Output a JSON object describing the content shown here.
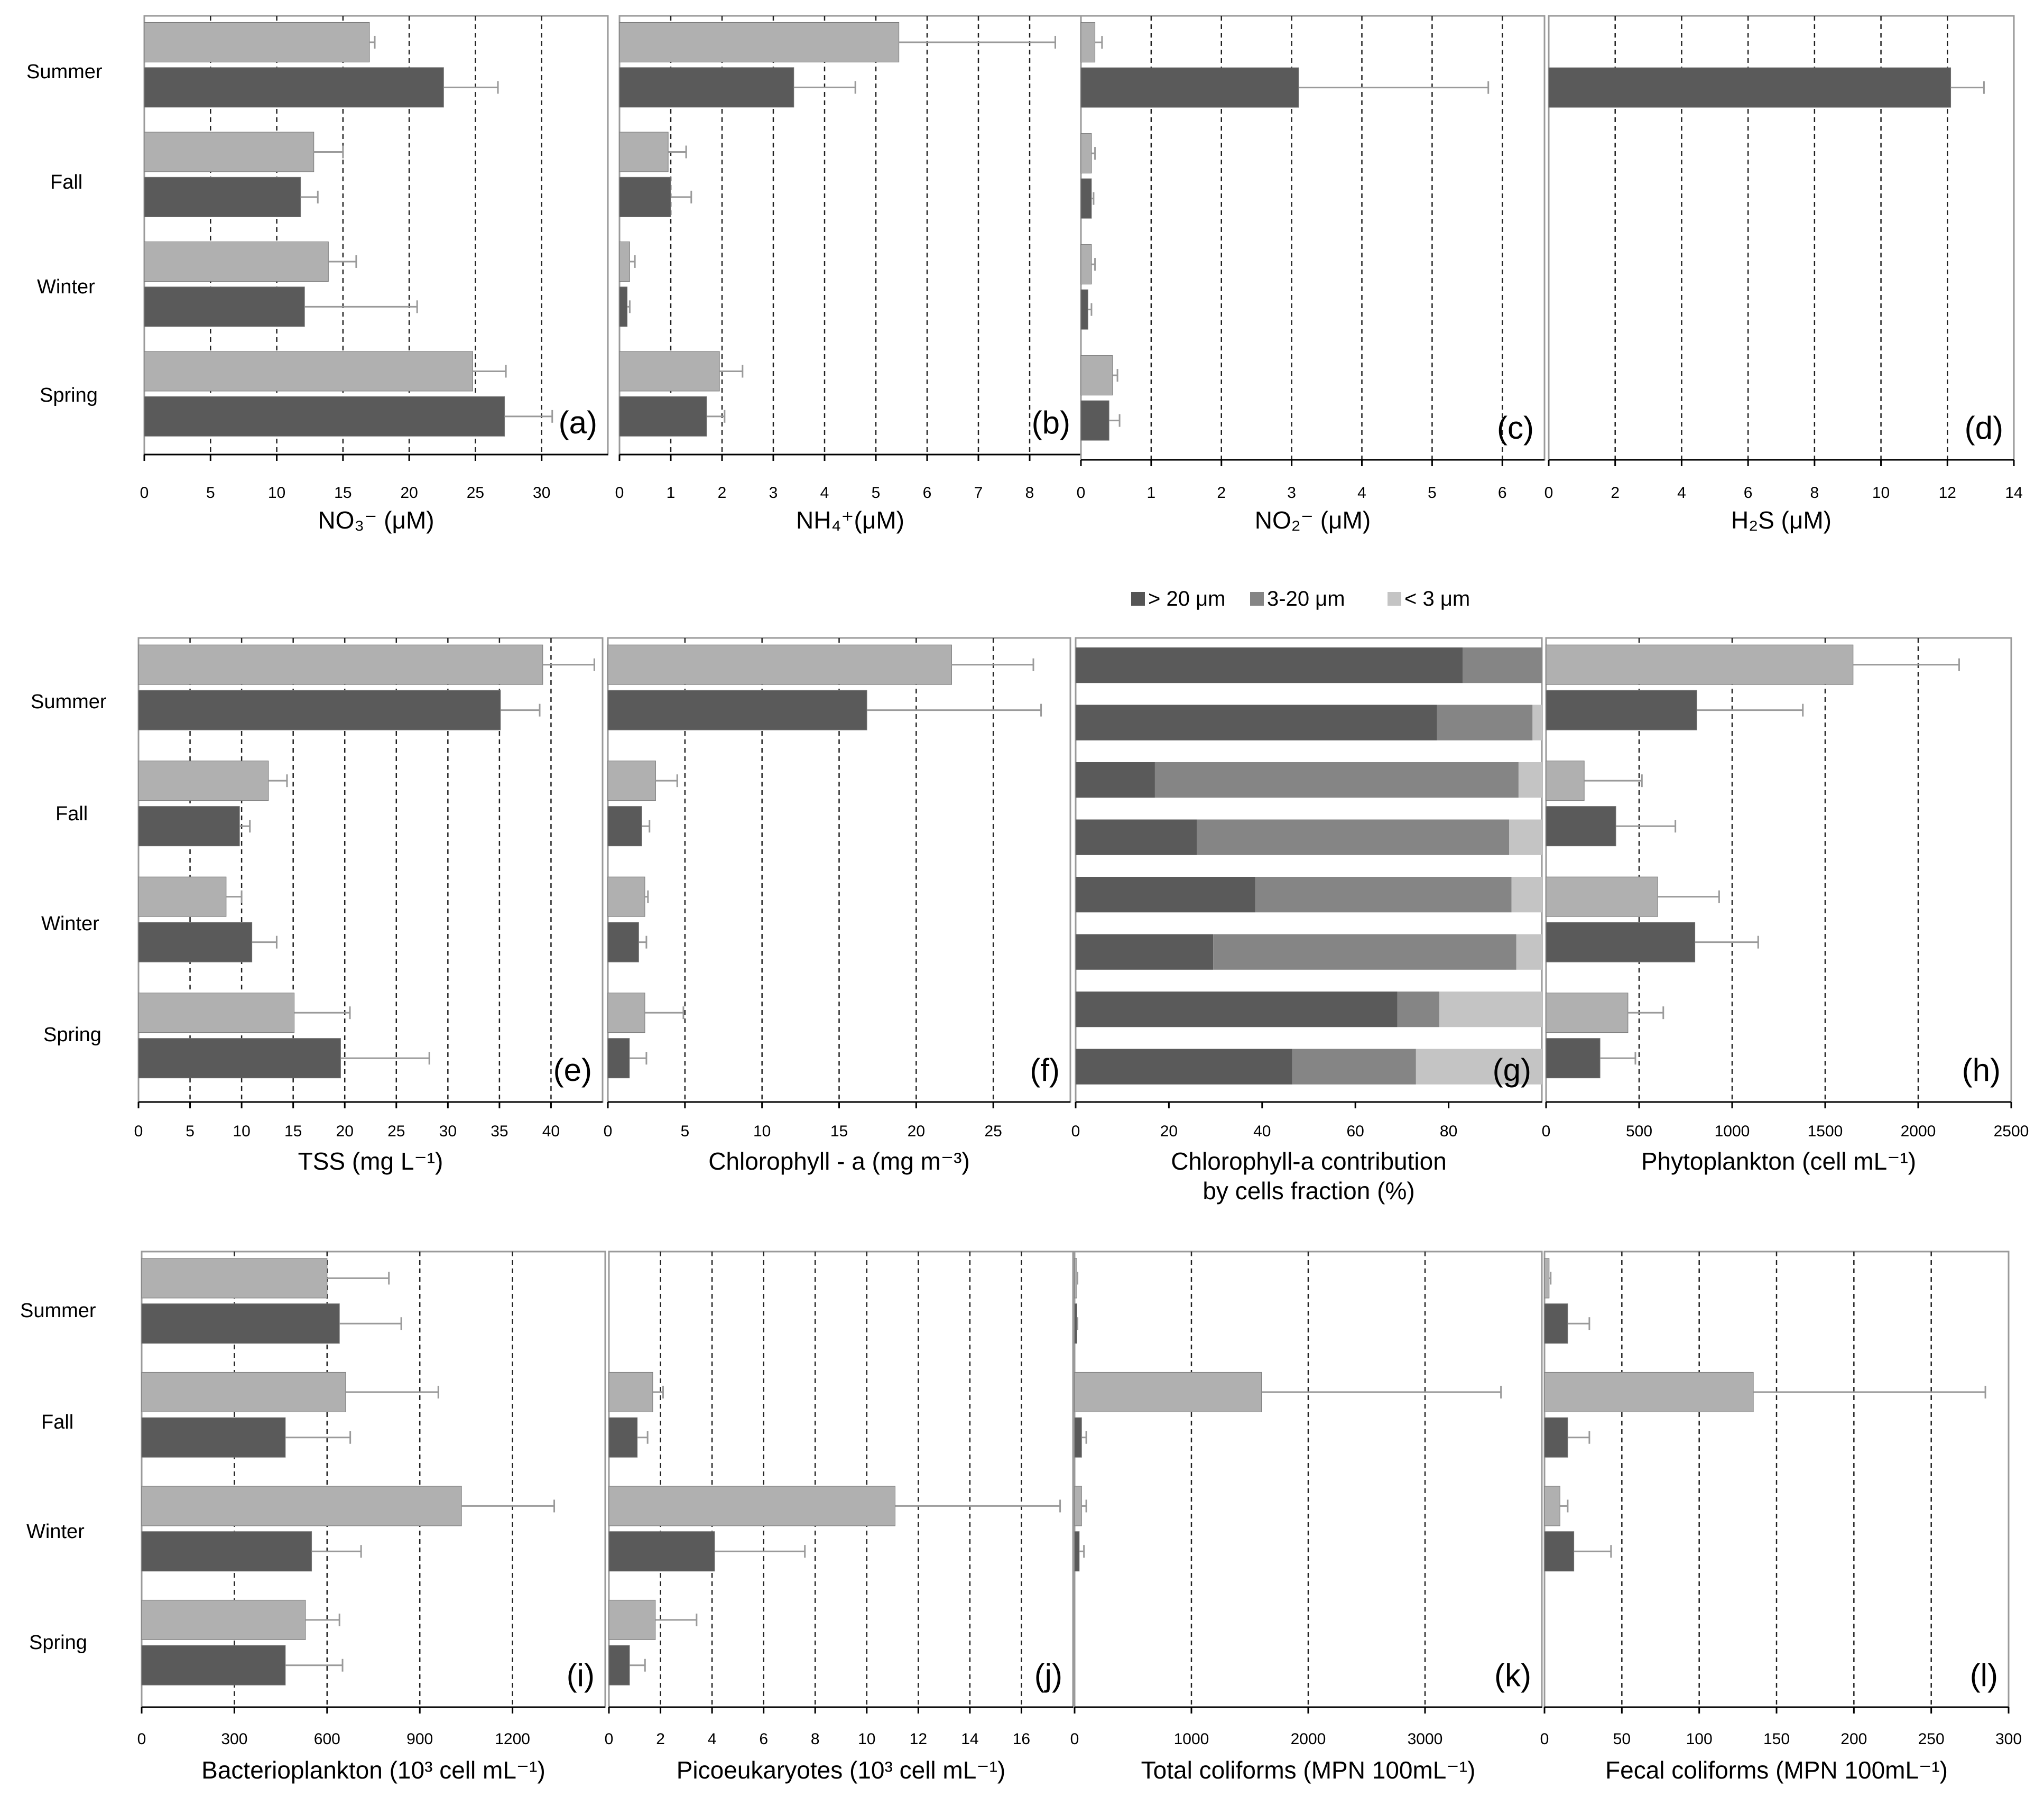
{
  "colors": {
    "light": "#b0b0b0",
    "dark": "#5a5a5a",
    "mid": "#858585",
    "lightest": "#c4c4c4",
    "error": "#9a9a9a"
  },
  "legend": [
    "> 20 μm",
    "3-20 μm",
    "< 3 μm"
  ],
  "chart_data": [
    {
      "id": "a",
      "type": "bar",
      "panel_label": "(a)",
      "xlabel": "NO₃⁻ (μM)",
      "xlim": [
        0,
        35
      ],
      "ticks": [
        "0",
        "5",
        "10",
        "15",
        "20",
        "25",
        "30"
      ],
      "tick_values": [
        0,
        5,
        10,
        15,
        20,
        25,
        30
      ],
      "grid_lines": [
        5,
        10,
        15,
        20,
        25,
        30
      ],
      "categories": [
        "Summer",
        "Fall",
        "Winter",
        "Spring"
      ],
      "light": [
        17,
        12.8,
        13.9,
        24.8
      ],
      "light_err": [
        0.4,
        2.2,
        2.1,
        2.5
      ],
      "dark": [
        22.6,
        11.8,
        12.1,
        27.2
      ],
      "dark_err": [
        4.1,
        1.3,
        8.5,
        3.6
      ]
    },
    {
      "id": "b",
      "type": "bar",
      "panel_label": "(b)",
      "xlabel": "NH₄⁺(μM)",
      "xlim": [
        0,
        9
      ],
      "ticks": [
        "0",
        "1",
        "2",
        "3",
        "4",
        "5",
        "6",
        "7",
        "8"
      ],
      "tick_values": [
        0,
        1,
        2,
        3,
        4,
        5,
        6,
        7,
        8
      ],
      "grid_lines": [
        1,
        2,
        3,
        4,
        5,
        6,
        7,
        8
      ],
      "categories": [
        "Summer",
        "Fall",
        "Winter",
        "Spring"
      ],
      "light": [
        5.45,
        0.95,
        0.2,
        1.95
      ],
      "light_err": [
        3.05,
        0.35,
        0.1,
        0.45
      ],
      "dark": [
        3.4,
        1.0,
        0.15,
        1.7
      ],
      "dark_err": [
        1.2,
        0.4,
        0.05,
        0.35
      ]
    },
    {
      "id": "c",
      "type": "bar",
      "panel_label": "(c)",
      "xlabel": "NO₂⁻ (μM)",
      "xlim": [
        0,
        6.6
      ],
      "ticks": [
        "0",
        "1",
        "2",
        "3",
        "4",
        "5",
        "6"
      ],
      "tick_values": [
        0,
        1,
        2,
        3,
        4,
        5,
        6
      ],
      "grid_lines": [
        1,
        2,
        3,
        4,
        5,
        6
      ],
      "categories": [
        "Summer",
        "Fall",
        "Winter",
        "Spring"
      ],
      "light": [
        0.2,
        0.15,
        0.15,
        0.45
      ],
      "light_err": [
        0.1,
        0.05,
        0.05,
        0.07
      ],
      "dark": [
        3.1,
        0.15,
        0.1,
        0.4
      ],
      "dark_err": [
        2.7,
        0.03,
        0.05,
        0.15
      ]
    },
    {
      "id": "d",
      "type": "bar",
      "panel_label": "(d)",
      "xlabel": "H₂S (μM)",
      "xlim": [
        0,
        14
      ],
      "ticks": [
        "0",
        "2",
        "4",
        "6",
        "8",
        "10",
        "12",
        "14"
      ],
      "tick_values": [
        0,
        2,
        4,
        6,
        8,
        10,
        12,
        14
      ],
      "grid_lines": [
        2,
        4,
        6,
        8,
        10,
        12
      ],
      "categories": [
        "Summer",
        "Fall",
        "Winter",
        "Spring"
      ],
      "light": [
        0,
        0,
        0,
        0
      ],
      "light_err": [
        0,
        0,
        0,
        0
      ],
      "dark": [
        12.1,
        0,
        0,
        0
      ],
      "dark_err": [
        1.0,
        0,
        0,
        0
      ]
    },
    {
      "id": "e",
      "type": "bar",
      "panel_label": "(e)",
      "xlabel": "TSS (mg L⁻¹)",
      "xlim": [
        0,
        45
      ],
      "ticks": [
        "0",
        "5",
        "10",
        "15",
        "20",
        "25",
        "30",
        "35",
        "40"
      ],
      "tick_values": [
        0,
        5,
        10,
        15,
        20,
        25,
        30,
        35,
        40
      ],
      "grid_lines": [
        5,
        10,
        15,
        20,
        25,
        30,
        35,
        40
      ],
      "categories": [
        "Summer",
        "Fall",
        "Winter",
        "Spring"
      ],
      "light": [
        39.2,
        12.6,
        8.5,
        15.1
      ],
      "light_err": [
        5,
        1.8,
        1.5,
        5.4
      ],
      "dark": [
        35.1,
        9.8,
        11,
        19.6
      ],
      "dark_err": [
        3.8,
        1,
        2.4,
        8.6
      ]
    },
    {
      "id": "f",
      "type": "bar",
      "panel_label": "(f)",
      "xlabel": "Chlorophyll - a (mg m⁻³)",
      "xlim": [
        0,
        30
      ],
      "ticks": [
        "0",
        "5",
        "10",
        "15",
        "20",
        "25"
      ],
      "tick_values": [
        0,
        5,
        10,
        15,
        20,
        25
      ],
      "grid_lines": [
        5,
        10,
        15,
        20,
        25
      ],
      "categories": [
        "Summer",
        "Fall",
        "Winter",
        "Spring"
      ],
      "light": [
        22.3,
        3.1,
        2.4,
        2.4
      ],
      "light_err": [
        5.3,
        1.4,
        0.2,
        2.5
      ],
      "dark": [
        16.8,
        2.2,
        2,
        1.4
      ],
      "dark_err": [
        11.3,
        0.5,
        0.5,
        1.1
      ]
    },
    {
      "id": "g",
      "type": "stacked",
      "panel_label": "(g)",
      "xlabel": [
        "Chlorophyll-a contribution",
        "by cells fraction (%)"
      ],
      "xlim": [
        0,
        100
      ],
      "ticks": [
        "0",
        "20",
        "40",
        "60",
        "80"
      ],
      "tick_values": [
        0,
        20,
        40,
        60,
        80
      ],
      "grid_lines": [],
      "segments": [
        [
          83,
          17,
          0
        ],
        [
          77.5,
          20.5,
          2
        ],
        [
          17,
          78,
          5
        ],
        [
          26,
          67,
          7
        ],
        [
          38.5,
          55,
          6.5
        ],
        [
          29.5,
          65,
          5.5
        ],
        [
          69,
          9,
          22
        ],
        [
          46.5,
          26.5,
          27
        ]
      ]
    },
    {
      "id": "h",
      "type": "bar",
      "panel_label": "(h)",
      "xlabel": "Phytoplankton (cell mL⁻¹)",
      "xlim": [
        0,
        2500
      ],
      "ticks": [
        "0",
        "500",
        "1000",
        "1500",
        "2000",
        "2500"
      ],
      "tick_values": [
        0,
        500,
        1000,
        1500,
        2000,
        2500
      ],
      "grid_lines": [
        500,
        1000,
        1500,
        2000
      ],
      "categories": [
        "Summer",
        "Fall",
        "Winter",
        "Spring"
      ],
      "light": [
        1650,
        205,
        600,
        440
      ],
      "light_err": [
        570,
        310,
        330,
        190
      ],
      "dark": [
        810,
        375,
        800,
        290
      ],
      "dark_err": [
        570,
        320,
        340,
        190
      ]
    },
    {
      "id": "i",
      "type": "bar",
      "panel_label": "(i)",
      "xlabel": "Bacterioplankton (10³ cell mL⁻¹)",
      "xlim": [
        0,
        1500
      ],
      "ticks": [
        "0",
        "300",
        "600",
        "900",
        "1200"
      ],
      "tick_values": [
        0,
        300,
        600,
        900,
        1200
      ],
      "grid_lines": [
        300,
        600,
        900,
        1200
      ],
      "categories": [
        "Summer",
        "Fall",
        "Winter",
        "Spring"
      ],
      "light": [
        600,
        660,
        1035,
        530
      ],
      "light_err": [
        200,
        300,
        300,
        110
      ],
      "dark": [
        640,
        465,
        550,
        465
      ],
      "dark_err": [
        200,
        210,
        160,
        185
      ]
    },
    {
      "id": "j",
      "type": "bar",
      "panel_label": "(j)",
      "xlabel": "Picoeukaryotes (10³ cell mL⁻¹)",
      "xlim": [
        0,
        18
      ],
      "ticks": [
        "0",
        "2",
        "4",
        "6",
        "8",
        "10",
        "12",
        "14",
        "16"
      ],
      "tick_values": [
        0,
        2,
        4,
        6,
        8,
        10,
        12,
        14,
        16
      ],
      "grid_lines": [
        2,
        4,
        6,
        8,
        10,
        12,
        14,
        16
      ],
      "categories": [
        "Summer",
        "Fall",
        "Winter",
        "Spring"
      ],
      "light": [
        0,
        1.7,
        11.1,
        1.8
      ],
      "light_err": [
        0,
        0.4,
        6.4,
        1.6
      ],
      "dark": [
        0,
        1.1,
        4.1,
        0.8
      ],
      "dark_err": [
        0,
        0.4,
        3.5,
        0.6
      ]
    },
    {
      "id": "k",
      "type": "bar",
      "panel_label": "(k)",
      "xlabel": "Total coliforms (MPN 100mL⁻¹)",
      "xlim": [
        0,
        4000
      ],
      "ticks": [
        "0",
        "1000",
        "2000",
        "3000"
      ],
      "tick_values": [
        0,
        1000,
        2000,
        3000
      ],
      "grid_lines": [
        1000,
        2000,
        3000
      ],
      "categories": [
        "Summer",
        "Fall",
        "Winter",
        "Spring"
      ],
      "light": [
        20,
        1600,
        60,
        0
      ],
      "light_err": [
        5,
        2050,
        40,
        0
      ],
      "dark": [
        20,
        60,
        40,
        0
      ],
      "dark_err": [
        5,
        40,
        40,
        0
      ]
    },
    {
      "id": "l",
      "type": "bar",
      "panel_label": "(l)",
      "xlabel": "Fecal coliforms (MPN 100mL⁻¹)",
      "xlim": [
        0,
        300
      ],
      "ticks": [
        "0",
        "50",
        "100",
        "150",
        "200",
        "250",
        "300"
      ],
      "tick_values": [
        0,
        50,
        100,
        150,
        200,
        250,
        300
      ],
      "grid_lines": [
        50,
        100,
        150,
        200,
        250
      ],
      "categories": [
        "Summer",
        "Fall",
        "Winter",
        "Spring"
      ],
      "light": [
        3,
        135,
        10,
        0
      ],
      "light_err": [
        1,
        150,
        5,
        0
      ],
      "dark": [
        15,
        15,
        19,
        0
      ],
      "dark_err": [
        14,
        14,
        24,
        0
      ]
    }
  ]
}
